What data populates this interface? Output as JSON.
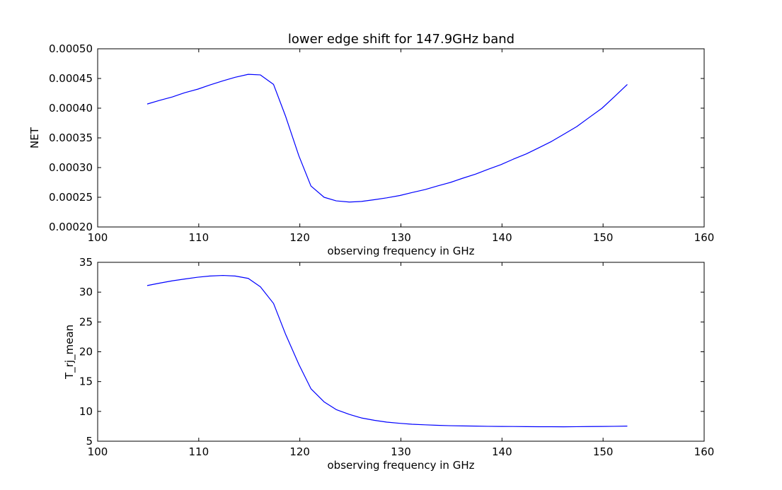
{
  "figure": {
    "title": "lower edge shift for 147.9GHz band"
  },
  "chart_data": [
    {
      "type": "line",
      "title": "lower edge shift for 147.9GHz band",
      "xlabel": "observing frequency in GHz",
      "ylabel": "NET",
      "xlim": [
        100,
        160
      ],
      "ylim": [
        0.0002,
        0.0005
      ],
      "x_ticks": [
        "100",
        "110",
        "120",
        "130",
        "140",
        "150",
        "160"
      ],
      "y_ticks": [
        "0.00020",
        "0.00025",
        "0.00030",
        "0.00035",
        "0.00040",
        "0.00045",
        "0.00050"
      ],
      "line_color": "#0000ff",
      "grid": false,
      "series": [
        {
          "x": [
            104.9,
            106.1,
            107.4,
            108.6,
            109.9,
            111.1,
            112.4,
            113.6,
            114.9,
            116.1,
            117.4,
            118.6,
            119.9,
            121.1,
            122.4,
            123.6,
            124.9,
            126.1,
            127.4,
            128.6,
            129.9,
            131.1,
            132.4,
            133.6,
            134.9,
            136.1,
            137.4,
            138.6,
            139.9,
            141.1,
            142.4,
            143.6,
            144.9,
            146.1,
            147.4,
            148.6,
            149.9,
            151.1,
            152.4
          ],
          "y": [
            0.000407,
            0.000413,
            0.000419,
            0.000426,
            0.000432,
            0.000439,
            0.000446,
            0.000452,
            0.000457,
            0.000456,
            0.00044,
            0.000386,
            0.00032,
            0.000269,
            0.00025,
            0.000244,
            0.000242,
            0.000243,
            0.000246,
            0.000249,
            0.000253,
            0.000258,
            0.000263,
            0.000269,
            0.000275,
            0.000282,
            0.000289,
            0.000297,
            0.000305,
            0.000314,
            0.000323,
            0.000333,
            0.000344,
            0.000356,
            0.000369,
            0.000384,
            0.0004,
            0.000419,
            0.00044
          ]
        }
      ]
    },
    {
      "type": "line",
      "title": "",
      "xlabel": "observing frequency in GHz",
      "ylabel": "T_rj_mean",
      "xlim": [
        100,
        160
      ],
      "ylim": [
        5,
        35
      ],
      "x_ticks": [
        "100",
        "110",
        "120",
        "130",
        "140",
        "150",
        "160"
      ],
      "y_ticks": [
        "5",
        "10",
        "15",
        "20",
        "25",
        "30",
        "35"
      ],
      "line_color": "#0000ff",
      "grid": false,
      "series": [
        {
          "x": [
            104.9,
            106.1,
            107.4,
            108.6,
            109.9,
            111.1,
            112.4,
            113.6,
            114.9,
            116.1,
            117.4,
            118.6,
            119.9,
            121.1,
            122.4,
            123.6,
            124.9,
            126.1,
            127.4,
            128.6,
            129.9,
            131.1,
            132.4,
            133.6,
            134.9,
            136.1,
            137.4,
            138.6,
            139.9,
            141.1,
            142.4,
            143.6,
            144.9,
            146.1,
            147.4,
            148.6,
            149.9,
            151.1,
            152.4
          ],
          "y": [
            31.1,
            31.5,
            31.9,
            32.2,
            32.5,
            32.7,
            32.8,
            32.7,
            32.3,
            30.9,
            28.1,
            22.9,
            17.9,
            13.8,
            11.6,
            10.3,
            9.5,
            8.9,
            8.5,
            8.2,
            8.0,
            7.85,
            7.75,
            7.67,
            7.6,
            7.56,
            7.53,
            7.5,
            7.48,
            7.47,
            7.45,
            7.43,
            7.43,
            7.42,
            7.44,
            7.46,
            7.48,
            7.5,
            7.53
          ]
        }
      ]
    }
  ]
}
